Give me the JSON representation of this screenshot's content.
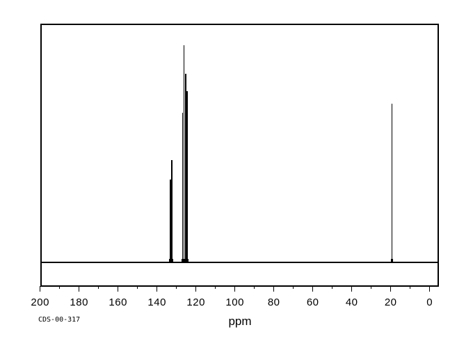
{
  "page": {
    "background": "#ffffff",
    "line_color": "#000000"
  },
  "footer": {
    "id_label": "CDS-00-317"
  },
  "chart_data": {
    "type": "line",
    "subtype": "nmr-spectrum",
    "title": "",
    "xlabel": "ppm",
    "ylabel": "",
    "grid": false,
    "legend": false,
    "line_color": "#000000",
    "background_color": "#ffffff",
    "x_axis": {
      "min": 0,
      "max": 200,
      "inverted": true,
      "major_tick_step": 20,
      "minor_tick_step": 10,
      "tick_labels": [
        "200",
        "180",
        "160",
        "140",
        "120",
        "100",
        "80",
        "60",
        "40",
        "20",
        "0"
      ]
    },
    "baseline_intensity": 0,
    "peaks": [
      {
        "ppm": 133.2,
        "rel_intensity": 0.38
      },
      {
        "ppm": 132.3,
        "rel_intensity": 0.47
      },
      {
        "ppm": 126.8,
        "rel_intensity": 0.69
      },
      {
        "ppm": 126.2,
        "rel_intensity": 1.0
      },
      {
        "ppm": 125.3,
        "rel_intensity": 0.87
      },
      {
        "ppm": 124.5,
        "rel_intensity": 0.79
      },
      {
        "ppm": 19.4,
        "rel_intensity": 0.73
      }
    ]
  }
}
